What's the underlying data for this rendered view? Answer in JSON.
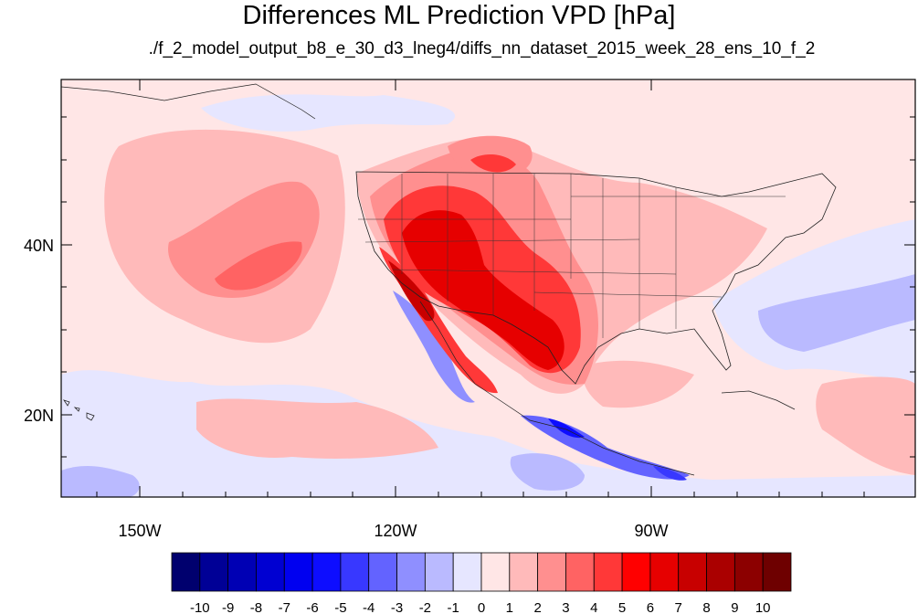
{
  "title": "Differences ML Prediction VPD [hPa]",
  "subtitle": "./f_2_model_output_b8_e_30_d3_lneg4/diffs_nn_dataset_2015_week_28_ens_10_f_2",
  "map": {
    "lon_labels": [
      "150W",
      "120W",
      "90W"
    ],
    "lat_labels": [
      "40N",
      "20N"
    ]
  },
  "colorbar": {
    "labels": [
      "-10",
      "-9",
      "-8",
      "-7",
      "-6",
      "-5",
      "-4",
      "-3",
      "-2",
      "-1",
      "0",
      "1",
      "2",
      "3",
      "4",
      "5",
      "6",
      "7",
      "8",
      "9",
      "10"
    ],
    "colors": [
      "#00006e",
      "#000096",
      "#0000b4",
      "#0000d2",
      "#0000f0",
      "#0d0dff",
      "#3838ff",
      "#6363ff",
      "#8f8fff",
      "#babaff",
      "#e6e6ff",
      "#ffe6e6",
      "#ffbaba",
      "#ff8f8f",
      "#ff6363",
      "#ff3838",
      "#ff0000",
      "#e60000",
      "#c80000",
      "#aa0000",
      "#8c0000",
      "#6e0000"
    ]
  },
  "palette": {
    "background_anomaly": "#ffe6e6",
    "light_positive": "#ffbaba",
    "mid_positive": "#ff8f8f",
    "strong_positive": "#ff3838",
    "very_strong_positive": "#e60000",
    "light_negative": "#babaff",
    "mid_negative": "#8f8fff",
    "strong_negative": "#3838ff"
  }
}
